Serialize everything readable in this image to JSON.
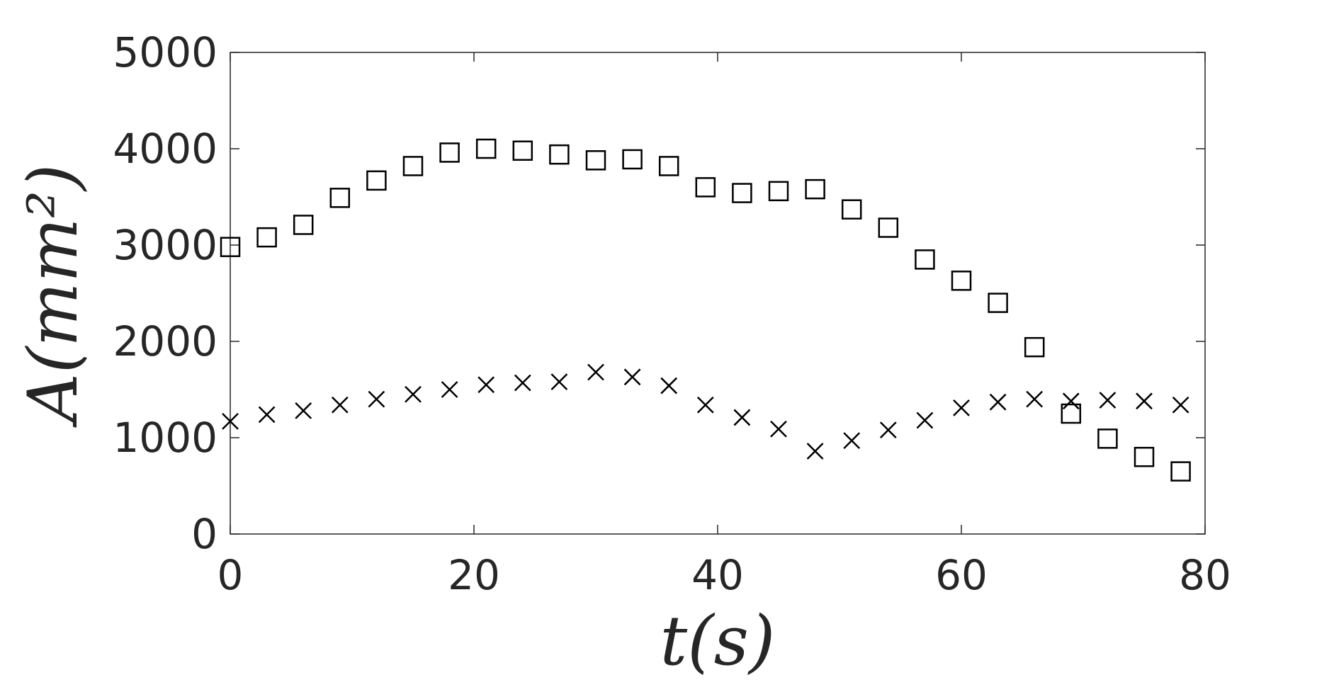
{
  "chart_data": {
    "type": "scatter",
    "title": "",
    "xlabel": "t(s)",
    "ylabel": "A(mm²)",
    "xlim": [
      0,
      80
    ],
    "ylim": [
      0,
      5000
    ],
    "xticks": [
      0,
      20,
      40,
      60,
      80
    ],
    "yticks": [
      0,
      1000,
      2000,
      3000,
      4000,
      5000
    ],
    "grid": false,
    "series": [
      {
        "marker": "square",
        "x": [
          0,
          3,
          6,
          9,
          12,
          15,
          18,
          21,
          24,
          27,
          30,
          33,
          36,
          39,
          42,
          45,
          48,
          51,
          54,
          57,
          60,
          63,
          66,
          69,
          72,
          75,
          78
        ],
        "y": [
          2980,
          3080,
          3210,
          3490,
          3670,
          3820,
          3960,
          4000,
          3980,
          3940,
          3880,
          3890,
          3820,
          3600,
          3540,
          3560,
          3580,
          3370,
          3180,
          2850,
          2630,
          2400,
          1940,
          1250,
          990,
          800,
          650
        ]
      },
      {
        "marker": "x",
        "x": [
          0,
          3,
          6,
          9,
          12,
          15,
          18,
          21,
          24,
          27,
          30,
          33,
          36,
          39,
          42,
          45,
          48,
          51,
          54,
          57,
          60,
          63,
          66,
          69,
          72,
          75,
          78
        ],
        "y": [
          1170,
          1240,
          1280,
          1340,
          1400,
          1450,
          1500,
          1550,
          1570,
          1580,
          1680,
          1630,
          1540,
          1340,
          1210,
          1090,
          860,
          970,
          1080,
          1180,
          1310,
          1370,
          1400,
          1380,
          1390,
          1380,
          1340
        ]
      }
    ]
  }
}
